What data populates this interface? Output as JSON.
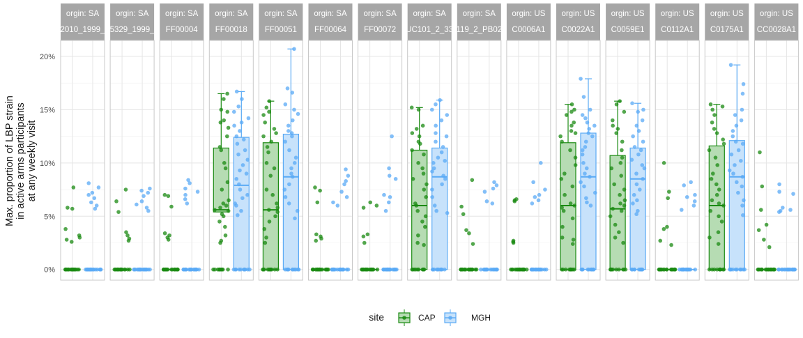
{
  "chart_data": {
    "type": "boxplot-jitter",
    "ylabel": [
      "Max. proportion of LBP strain",
      "in active arms participants",
      "at any weekly visit"
    ],
    "xlabel": "",
    "ylim": [
      -0.01,
      0.215
    ],
    "yticks": [
      0,
      0.05,
      0.1,
      0.15,
      0.2
    ],
    "ytick_labels": [
      "0%",
      "5%",
      "10%",
      "15%",
      "20%"
    ],
    "grid": true,
    "legend": {
      "title": "site",
      "position": "bottom",
      "entries": [
        {
          "name": "CAP",
          "color": "#1a8a12",
          "fill": "#b6dcb3"
        },
        {
          "name": "MGH",
          "color": "#5aaaf5",
          "fill": "#c7e2fb"
        }
      ]
    },
    "panels": [
      {
        "strip1": "orgin: SA",
        "strip2": "2010_1999_",
        "CAP": {
          "zeros": 18,
          "pts": [
            0.077,
            0.057,
            0.058,
            0.038,
            0.032,
            0.03,
            0.028,
            0.026
          ]
        },
        "MGH": {
          "zeros": 18,
          "pts": [
            0.081,
            0.077,
            0.072,
            0.07,
            0.067,
            0.063,
            0.06,
            0.057
          ]
        }
      },
      {
        "strip1": "orgin: SA",
        "strip2": "5329_1999_",
        "CAP": {
          "zeros": 18,
          "pts": [
            0.075,
            0.064,
            0.054,
            0.035,
            0.032,
            0.029,
            0.027
          ]
        },
        "MGH": {
          "zeros": 18,
          "pts": [
            0.076,
            0.074,
            0.072,
            0.069,
            0.064,
            0.061,
            0.058,
            0.055
          ]
        }
      },
      {
        "strip1": "orgin: SA",
        "strip2": "FF00004",
        "CAP": {
          "zeros": 18,
          "pts": [
            0.07,
            0.069,
            0.059,
            0.034,
            0.032,
            0.03,
            0.028
          ]
        },
        "MGH": {
          "zeros": 18,
          "pts": [
            0.084,
            0.081,
            0.076,
            0.073,
            0.07,
            0.066,
            0.062
          ]
        }
      },
      {
        "strip1": "orgin: SA",
        "strip2": "FF00018",
        "CAP": {
          "box": [
            0,
            0.054,
            0.056,
            0.114,
            0.165
          ],
          "zeros": 10,
          "pts": [
            0.165,
            0.16,
            0.15,
            0.148,
            0.14,
            0.138,
            0.133,
            0.125,
            0.115,
            0.112,
            0.1,
            0.095,
            0.082,
            0.075,
            0.065,
            0.062,
            0.06,
            0.058,
            0.056,
            0.055,
            0.052,
            0.05,
            0.045,
            0.04,
            0.032,
            0.027,
            0.025
          ]
        },
        "MGH": {
          "box": [
            0,
            0.0,
            0.079,
            0.124,
            0.167
          ],
          "zeros": 10,
          "pts": [
            0.167,
            0.16,
            0.153,
            0.148,
            0.142,
            0.138,
            0.135,
            0.13,
            0.125,
            0.122,
            0.118,
            0.112,
            0.108,
            0.103,
            0.098,
            0.093,
            0.09,
            0.085,
            0.08,
            0.075,
            0.07,
            0.067,
            0.062,
            0.06,
            0.055,
            0.051
          ]
        }
      },
      {
        "strip1": "orgin: SA",
        "strip2": "FF00051",
        "CAP": {
          "box": [
            0,
            0.0,
            0.056,
            0.119,
            0.158
          ],
          "zeros": 10,
          "pts": [
            0.158,
            0.152,
            0.148,
            0.145,
            0.138,
            0.132,
            0.128,
            0.125,
            0.12,
            0.115,
            0.11,
            0.1,
            0.095,
            0.088,
            0.075,
            0.07,
            0.062,
            0.058,
            0.056,
            0.054,
            0.05,
            0.045,
            0.038,
            0.03,
            0.025
          ]
        },
        "MGH": {
          "box": [
            0,
            0.0,
            0.087,
            0.127,
            0.207
          ],
          "zeros": 10,
          "pts": [
            0.207,
            0.17,
            0.166,
            0.155,
            0.15,
            0.146,
            0.14,
            0.135,
            0.13,
            0.128,
            0.125,
            0.12,
            0.112,
            0.105,
            0.1,
            0.095,
            0.09,
            0.087,
            0.08,
            0.075,
            0.068,
            0.062,
            0.055,
            0.048
          ]
        }
      },
      {
        "strip1": "orgin: SA",
        "strip2": "FF00064",
        "CAP": {
          "zeros": 18,
          "pts": [
            0.077,
            0.074,
            0.063,
            0.033,
            0.031,
            0.029,
            0.027
          ]
        },
        "MGH": {
          "zeros": 18,
          "pts": [
            0.094,
            0.088,
            0.083,
            0.08,
            0.073,
            0.068,
            0.063,
            0.06
          ]
        }
      },
      {
        "strip1": "orgin: SA",
        "strip2": "FF00072",
        "CAP": {
          "zeros": 18,
          "pts": [
            0.063,
            0.06,
            0.058,
            0.033,
            0.031,
            0.025
          ]
        },
        "MGH": {
          "zeros": 18,
          "pts": [
            0.125,
            0.095,
            0.088,
            0.085,
            0.07,
            0.068,
            0.063,
            0.055
          ]
        }
      },
      {
        "strip1": "orgin: SA",
        "strip2": "UC101_2_33",
        "CAP": {
          "box": [
            0,
            0.0,
            0.06,
            0.112,
            0.152
          ],
          "zeros": 10,
          "pts": [
            0.152,
            0.15,
            0.135,
            0.132,
            0.128,
            0.125,
            0.12,
            0.118,
            0.112,
            0.108,
            0.1,
            0.095,
            0.09,
            0.085,
            0.08,
            0.075,
            0.068,
            0.062,
            0.06,
            0.055,
            0.05,
            0.045,
            0.04,
            0.032,
            0.025,
            0.023
          ]
        },
        "MGH": {
          "box": [
            0,
            0.0,
            0.087,
            0.114,
            0.159
          ],
          "zeros": 10,
          "pts": [
            0.159,
            0.155,
            0.15,
            0.145,
            0.14,
            0.135,
            0.128,
            0.125,
            0.12,
            0.115,
            0.11,
            0.105,
            0.102,
            0.1,
            0.095,
            0.092,
            0.088,
            0.085,
            0.08,
            0.075,
            0.068,
            0.06,
            0.055,
            0.053
          ]
        }
      },
      {
        "strip1": "orgin: SA",
        "strip2": "119_2_PB02",
        "CAP": {
          "zeros": 18,
          "pts": [
            0.084,
            0.059,
            0.052,
            0.037,
            0.034,
            0.024
          ]
        },
        "MGH": {
          "zeros": 18,
          "pts": [
            0.082,
            0.079,
            0.076,
            0.073,
            0.064,
            0.062
          ]
        }
      },
      {
        "strip1": "orgin: US",
        "strip2": "C0006A1",
        "CAP": {
          "zeros": 18,
          "pts": [
            0.066,
            0.065,
            0.064,
            0.027,
            0.026,
            0.025
          ]
        },
        "MGH": {
          "zeros": 18,
          "pts": [
            0.1,
            0.082,
            0.075,
            0.07,
            0.068,
            0.065,
            0.062
          ]
        }
      },
      {
        "strip1": "orgin: US",
        "strip2": "C0022A1",
        "CAP": {
          "box": [
            0,
            0.0,
            0.06,
            0.119,
            0.155
          ],
          "zeros": 10,
          "pts": [
            0.155,
            0.15,
            0.148,
            0.145,
            0.138,
            0.135,
            0.13,
            0.128,
            0.125,
            0.12,
            0.112,
            0.105,
            0.098,
            0.09,
            0.085,
            0.078,
            0.07,
            0.062,
            0.06,
            0.058,
            0.055,
            0.048,
            0.04,
            0.03,
            0.028,
            0.024
          ]
        },
        "MGH": {
          "box": [
            0,
            0.0,
            0.087,
            0.128,
            0.179
          ],
          "zeros": 10,
          "pts": [
            0.179,
            0.162,
            0.15,
            0.145,
            0.142,
            0.138,
            0.135,
            0.132,
            0.128,
            0.125,
            0.12,
            0.115,
            0.112,
            0.108,
            0.1,
            0.095,
            0.09,
            0.087,
            0.082,
            0.078,
            0.072,
            0.067,
            0.063,
            0.06
          ]
        }
      },
      {
        "strip1": "orgin: US",
        "strip2": "C0059E1",
        "CAP": {
          "box": [
            0,
            0.0,
            0.057,
            0.107,
            0.158
          ],
          "zeros": 10,
          "pts": [
            0.158,
            0.155,
            0.148,
            0.14,
            0.135,
            0.132,
            0.128,
            0.12,
            0.112,
            0.105,
            0.1,
            0.095,
            0.088,
            0.08,
            0.075,
            0.07,
            0.065,
            0.062,
            0.06,
            0.057,
            0.055,
            0.05,
            0.042,
            0.035,
            0.03,
            0.025
          ]
        },
        "MGH": {
          "box": [
            0,
            0.0,
            0.085,
            0.114,
            0.156
          ],
          "zeros": 10,
          "pts": [
            0.156,
            0.15,
            0.148,
            0.14,
            0.135,
            0.13,
            0.125,
            0.12,
            0.115,
            0.112,
            0.108,
            0.103,
            0.098,
            0.095,
            0.09,
            0.085,
            0.08,
            0.075,
            0.07,
            0.065,
            0.062,
            0.055,
            0.052
          ]
        }
      },
      {
        "strip1": "orgin: US",
        "strip2": "C0112A1",
        "CAP": {
          "zeros": 18,
          "pts": [
            0.1,
            0.073,
            0.067,
            0.04,
            0.038,
            0.027,
            0.023
          ]
        },
        "MGH": {
          "zeros": 18,
          "pts": [
            0.082,
            0.079,
            0.07,
            0.068,
            0.064,
            0.06,
            0.056
          ]
        }
      },
      {
        "strip1": "orgin: US",
        "strip2": "C0175A1",
        "CAP": {
          "box": [
            0,
            0.0,
            0.06,
            0.116,
            0.155
          ],
          "zeros": 10,
          "pts": [
            0.155,
            0.153,
            0.15,
            0.145,
            0.138,
            0.132,
            0.128,
            0.122,
            0.118,
            0.112,
            0.105,
            0.098,
            0.09,
            0.085,
            0.08,
            0.075,
            0.07,
            0.065,
            0.062,
            0.06,
            0.055,
            0.05,
            0.045,
            0.035,
            0.03,
            0.024
          ]
        },
        "MGH": {
          "box": [
            0,
            0.0,
            0.087,
            0.121,
            0.192
          ],
          "zeros": 10,
          "pts": [
            0.192,
            0.174,
            0.165,
            0.15,
            0.145,
            0.14,
            0.135,
            0.13,
            0.125,
            0.12,
            0.118,
            0.112,
            0.108,
            0.102,
            0.098,
            0.093,
            0.09,
            0.087,
            0.082,
            0.078,
            0.072,
            0.065,
            0.06,
            0.051
          ]
        }
      },
      {
        "strip1": "orgin: US",
        "strip2": "CC0028A1",
        "CAP": {
          "zeros": 18,
          "pts": [
            0.11,
            0.078,
            0.056,
            0.042,
            0.037,
            0.028,
            0.021
          ]
        },
        "MGH": {
          "zeros": 18,
          "pts": [
            0.08,
            0.073,
            0.071,
            0.058,
            0.056,
            0.055,
            0.054
          ]
        }
      }
    ]
  }
}
